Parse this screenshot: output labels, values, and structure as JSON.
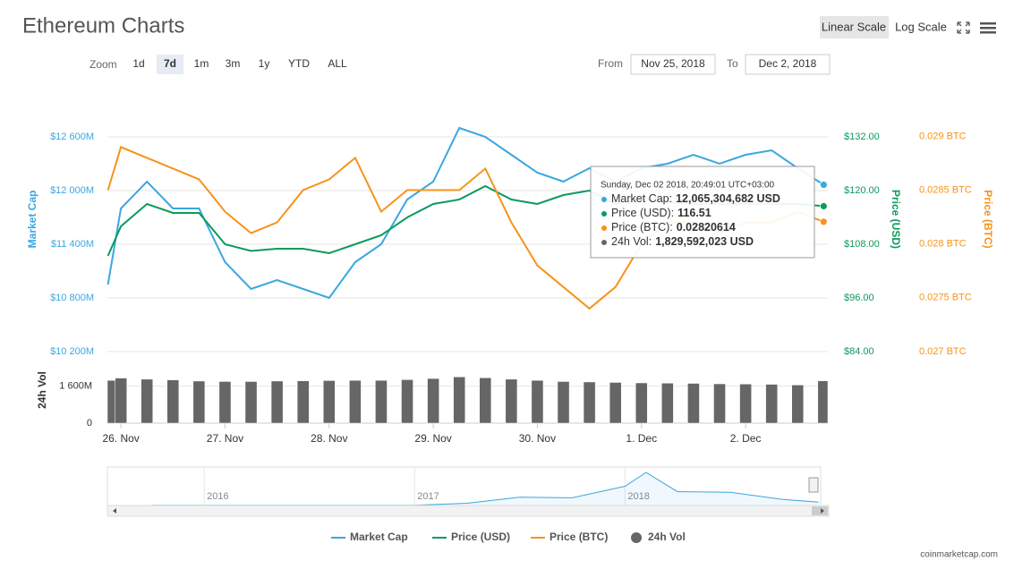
{
  "header": {
    "title": "Ethereum Charts",
    "scale_buttons": [
      "Linear Scale",
      "Log Scale"
    ]
  },
  "controls": {
    "zoom_label": "Zoom",
    "zoom_buttons": [
      "1d",
      "7d",
      "1m",
      "3m",
      "1y",
      "YTD",
      "ALL"
    ],
    "selected_zoom": 1,
    "from_label": "From",
    "from": "Nov 25, 2018",
    "to_label": "To",
    "to": "Dec 2, 2018"
  },
  "chart_data": {
    "type": "line",
    "x": [
      0.875,
      1.0,
      1.25,
      1.5,
      1.75,
      2.0,
      2.25,
      2.5,
      2.75,
      3.0,
      3.25,
      3.5,
      3.75,
      4.0,
      4.25,
      4.5,
      4.75,
      5.0,
      5.25,
      5.5,
      5.75,
      6.0,
      6.25,
      6.5,
      6.75,
      7.0,
      7.25,
      7.5,
      7.75
    ],
    "xlim": [
      0.87,
      7.79
    ],
    "xticks": [
      {
        "value": 1,
        "label": "26. Nov"
      },
      {
        "value": 2,
        "label": "27. Nov"
      },
      {
        "value": 3,
        "label": "28. Nov"
      },
      {
        "value": 4,
        "label": "29. Nov"
      },
      {
        "value": 5,
        "label": "30. Nov"
      },
      {
        "value": 6,
        "label": "1. Dec"
      },
      {
        "value": 7,
        "label": "2. Dec"
      }
    ],
    "y_label": "Market Cap",
    "y2_label": "Price (USD)",
    "y3_label": "Price (BTC)",
    "vol_label": "24h Vol",
    "ylim": [
      10200,
      13160
    ],
    "yticks": [
      {
        "value": 10200,
        "label": "$10 200M"
      },
      {
        "value": 10800,
        "label": "$10 800M"
      },
      {
        "value": 11400,
        "label": "$11 400M"
      },
      {
        "value": 12000,
        "label": "$12 000M"
      },
      {
        "value": 12600,
        "label": "$12 600M"
      }
    ],
    "y2lim": [
      84,
      143.2
    ],
    "y2ticks": [
      {
        "value": 84,
        "label": "$84.00"
      },
      {
        "value": 96,
        "label": "$96.00"
      },
      {
        "value": 108,
        "label": "$108.00"
      },
      {
        "value": 120,
        "label": "$120.00"
      },
      {
        "value": 132,
        "label": "$132.00"
      }
    ],
    "y3lim": [
      0.027,
      0.02946
    ],
    "y3ticks": [
      {
        "value": 0.027,
        "label": "0.027 BTC"
      },
      {
        "value": 0.0275,
        "label": "0.0275 BTC"
      },
      {
        "value": 0.028,
        "label": "0.028 BTC"
      },
      {
        "value": 0.0285,
        "label": "0.0285 BTC"
      },
      {
        "value": 0.029,
        "label": "0.029 BTC"
      }
    ],
    "vol_ylim": [
      0,
      2900
    ],
    "vol_yticks": [
      0,
      {
        "value": 1600,
        "label": "1 600M"
      }
    ],
    "grid": true,
    "series": [
      {
        "name": "Market Cap",
        "color": "#3aa7e0",
        "axis": "y",
        "values": [
          10950,
          11800,
          12100,
          11800,
          11800,
          11200,
          10900,
          11000,
          10900,
          10800,
          11200,
          11400,
          11900,
          12100,
          12700,
          12600,
          12400,
          12200,
          12100,
          12250,
          12100,
          12250,
          12300,
          12400,
          12300,
          12400,
          12450,
          12250,
          12065.304682
        ]
      },
      {
        "name": "Price (USD)",
        "color": "#0a9b5c",
        "axis": "y2",
        "values": [
          105.4,
          112,
          117,
          115,
          115,
          108,
          106.5,
          107,
          107,
          106,
          108,
          110,
          114,
          117,
          118,
          121,
          118,
          117,
          119,
          120,
          117,
          118,
          117.5,
          117,
          117,
          117,
          117,
          117,
          116.51
        ]
      },
      {
        "name": "Price (BTC)",
        "color": "#f7931a",
        "axis": "y3",
        "values": [
          0.0285,
          0.0289,
          0.0288,
          0.0287,
          0.0286,
          0.0283,
          0.0281,
          0.0282,
          0.0285,
          0.0286,
          0.0288,
          0.0283,
          0.0285,
          0.0285,
          0.0285,
          0.0287,
          0.0282,
          0.0278,
          0.0276,
          0.0274,
          0.0276,
          0.028,
          0.0282,
          0.0282,
          0.0281,
          0.0282,
          0.0282,
          0.0283,
          0.02820614
        ]
      },
      {
        "name": "24h Vol",
        "color": "#666666",
        "axis": "vol",
        "type": "bar",
        "values": [
          1850,
          1950,
          1900,
          1870,
          1820,
          1800,
          1800,
          1820,
          1830,
          1840,
          1850,
          1850,
          1880,
          1930,
          2000,
          1960,
          1900,
          1850,
          1800,
          1780,
          1760,
          1740,
          1730,
          1720,
          1700,
          1690,
          1680,
          1650,
          1829.592023
        ]
      }
    ],
    "tooltip": {
      "title": "Sunday, Dec 02 2018, 20:49:01 UTC+03:00",
      "items": [
        {
          "label": "Market Cap:",
          "value": "12,065,304,682 USD"
        },
        {
          "label": "Price (USD):",
          "value": "116.51"
        },
        {
          "label": "Price (BTC):",
          "value": "0.02820614"
        },
        {
          "label": "24h Vol:",
          "value": "1,829,592,023 USD"
        }
      ]
    },
    "navigator": {
      "x": [
        2015.75,
        2016.0,
        2016.25,
        2016.5,
        2016.75,
        2017.0,
        2017.25,
        2017.5,
        2017.75,
        2018.0,
        2018.1,
        2018.25,
        2018.5,
        2018.75,
        2018.92
      ],
      "values": [
        0.7,
        0.8,
        0.9,
        1.0,
        0.9,
        0.8,
        8,
        30,
        28,
        70,
        120,
        50,
        48,
        22,
        12
      ],
      "xlim": [
        2015.54,
        2018.93
      ],
      "ylim": [
        0,
        140
      ],
      "xticks": [
        2016,
        2017,
        2018
      ]
    }
  },
  "footer": "coinmarketcap.com"
}
